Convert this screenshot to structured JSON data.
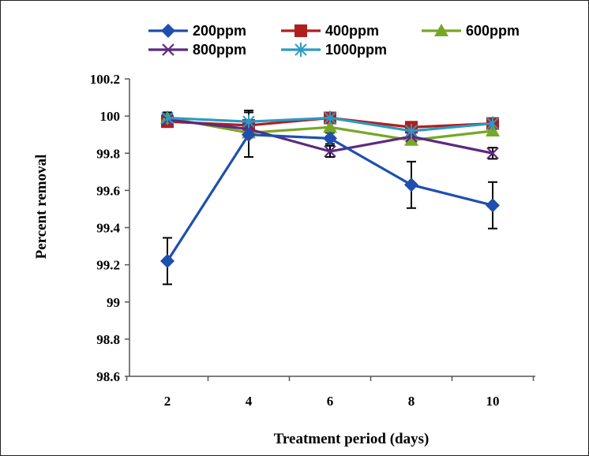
{
  "chart_data": {
    "type": "line",
    "xlabel": "Treatment period (days)",
    "ylabel": "Percent removal",
    "x": [
      2,
      4,
      6,
      8,
      10
    ],
    "x_tick_labels": [
      "2",
      "4",
      "6",
      "8",
      "10"
    ],
    "ylim": [
      98.6,
      100.2
    ],
    "y_ticks": [
      98.6,
      98.8,
      99,
      99.2,
      99.4,
      99.6,
      99.8,
      100,
      100.2
    ],
    "y_tick_labels": [
      "98.6",
      "98.8",
      "99",
      "99.2",
      "99.4",
      "99.6",
      "99.8",
      "100",
      "100.2"
    ],
    "grid": false,
    "legend_position": "top",
    "series": [
      {
        "name": "200ppm",
        "color": "#1f4fae",
        "marker": "diamond",
        "values": [
          99.22,
          99.9,
          99.88,
          99.63,
          99.52
        ],
        "errors": [
          0.125,
          0.12,
          0.03,
          0.125,
          0.125
        ]
      },
      {
        "name": "400ppm",
        "color": "#b01e1e",
        "marker": "square",
        "values": [
          99.97,
          99.95,
          99.99,
          99.94,
          99.96
        ],
        "errors": [
          0.02,
          0.02,
          0.01,
          0.02,
          0.01
        ]
      },
      {
        "name": "600ppm",
        "color": "#77a825",
        "marker": "triangle",
        "values": [
          99.99,
          99.91,
          99.94,
          99.87,
          99.92
        ],
        "errors": [
          0.02,
          0.02,
          0.02,
          0.02,
          0.02
        ]
      },
      {
        "name": "800ppm",
        "color": "#5c2a7e",
        "marker": "x",
        "values": [
          99.98,
          99.93,
          99.81,
          99.89,
          99.8
        ],
        "errors": [
          0.02,
          0.02,
          0.03,
          0.02,
          0.03
        ]
      },
      {
        "name": "1000ppm",
        "color": "#2b9ac4",
        "marker": "asterisk",
        "values": [
          99.99,
          99.97,
          99.99,
          99.92,
          99.96
        ],
        "errors": [
          0.03,
          0.06,
          0.02,
          0.02,
          0.02
        ]
      }
    ]
  }
}
